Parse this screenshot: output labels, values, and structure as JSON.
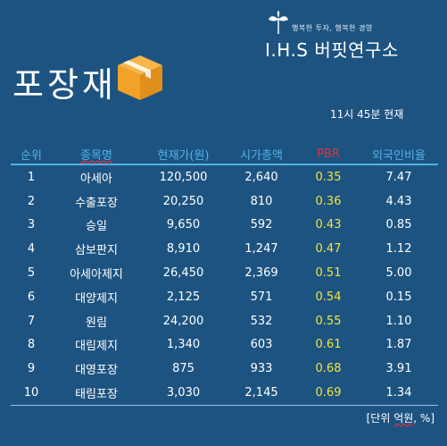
{
  "brand": {
    "tagline": "행복한 투자, 행복한 경영",
    "name": "I.H.S 버핏연구소"
  },
  "title": "포장재",
  "time": "11시 45분 현재",
  "headers": [
    "순위",
    "종목명",
    "현재가(원)",
    "시가총액",
    "PBR",
    "외국인비율"
  ],
  "rows": [
    [
      "1",
      "아세아",
      "120,500",
      "2,640",
      "0.35",
      "7.47"
    ],
    [
      "2",
      "수출포장",
      "20,250",
      "810",
      "0.36",
      "4.43"
    ],
    [
      "3",
      "승일",
      "9,650",
      "592",
      "0.43",
      "0.85"
    ],
    [
      "4",
      "삼보판지",
      "8,910",
      "1,247",
      "0.47",
      "1.12"
    ],
    [
      "5",
      "아세아제지",
      "26,450",
      "2,369",
      "0.51",
      "5.00"
    ],
    [
      "6",
      "대양제지",
      "2,125",
      "571",
      "0.54",
      "0.15"
    ],
    [
      "7",
      "원림",
      "24,200",
      "532",
      "0.55",
      "1.10"
    ],
    [
      "8",
      "대림제지",
      "1,340",
      "603",
      "0.61",
      "1.87"
    ],
    [
      "9",
      "대영포장",
      "875",
      "933",
      "0.68",
      "3.91"
    ],
    [
      "10",
      "태림포장",
      "3,030",
      "2,145",
      "0.69",
      "1.34"
    ]
  ],
  "unit": {
    "open": "[단위 ",
    "unit_word": "억원",
    "close": ", %]"
  },
  "colors": {
    "background": "#1d5381",
    "header_text": "#4fb3e8",
    "pbr_header": "#e0333a",
    "pbr_values": "#f2e43a",
    "box_icon": "#f2a227"
  },
  "icons": [
    "leaf-logo-icon",
    "box-icon"
  ]
}
